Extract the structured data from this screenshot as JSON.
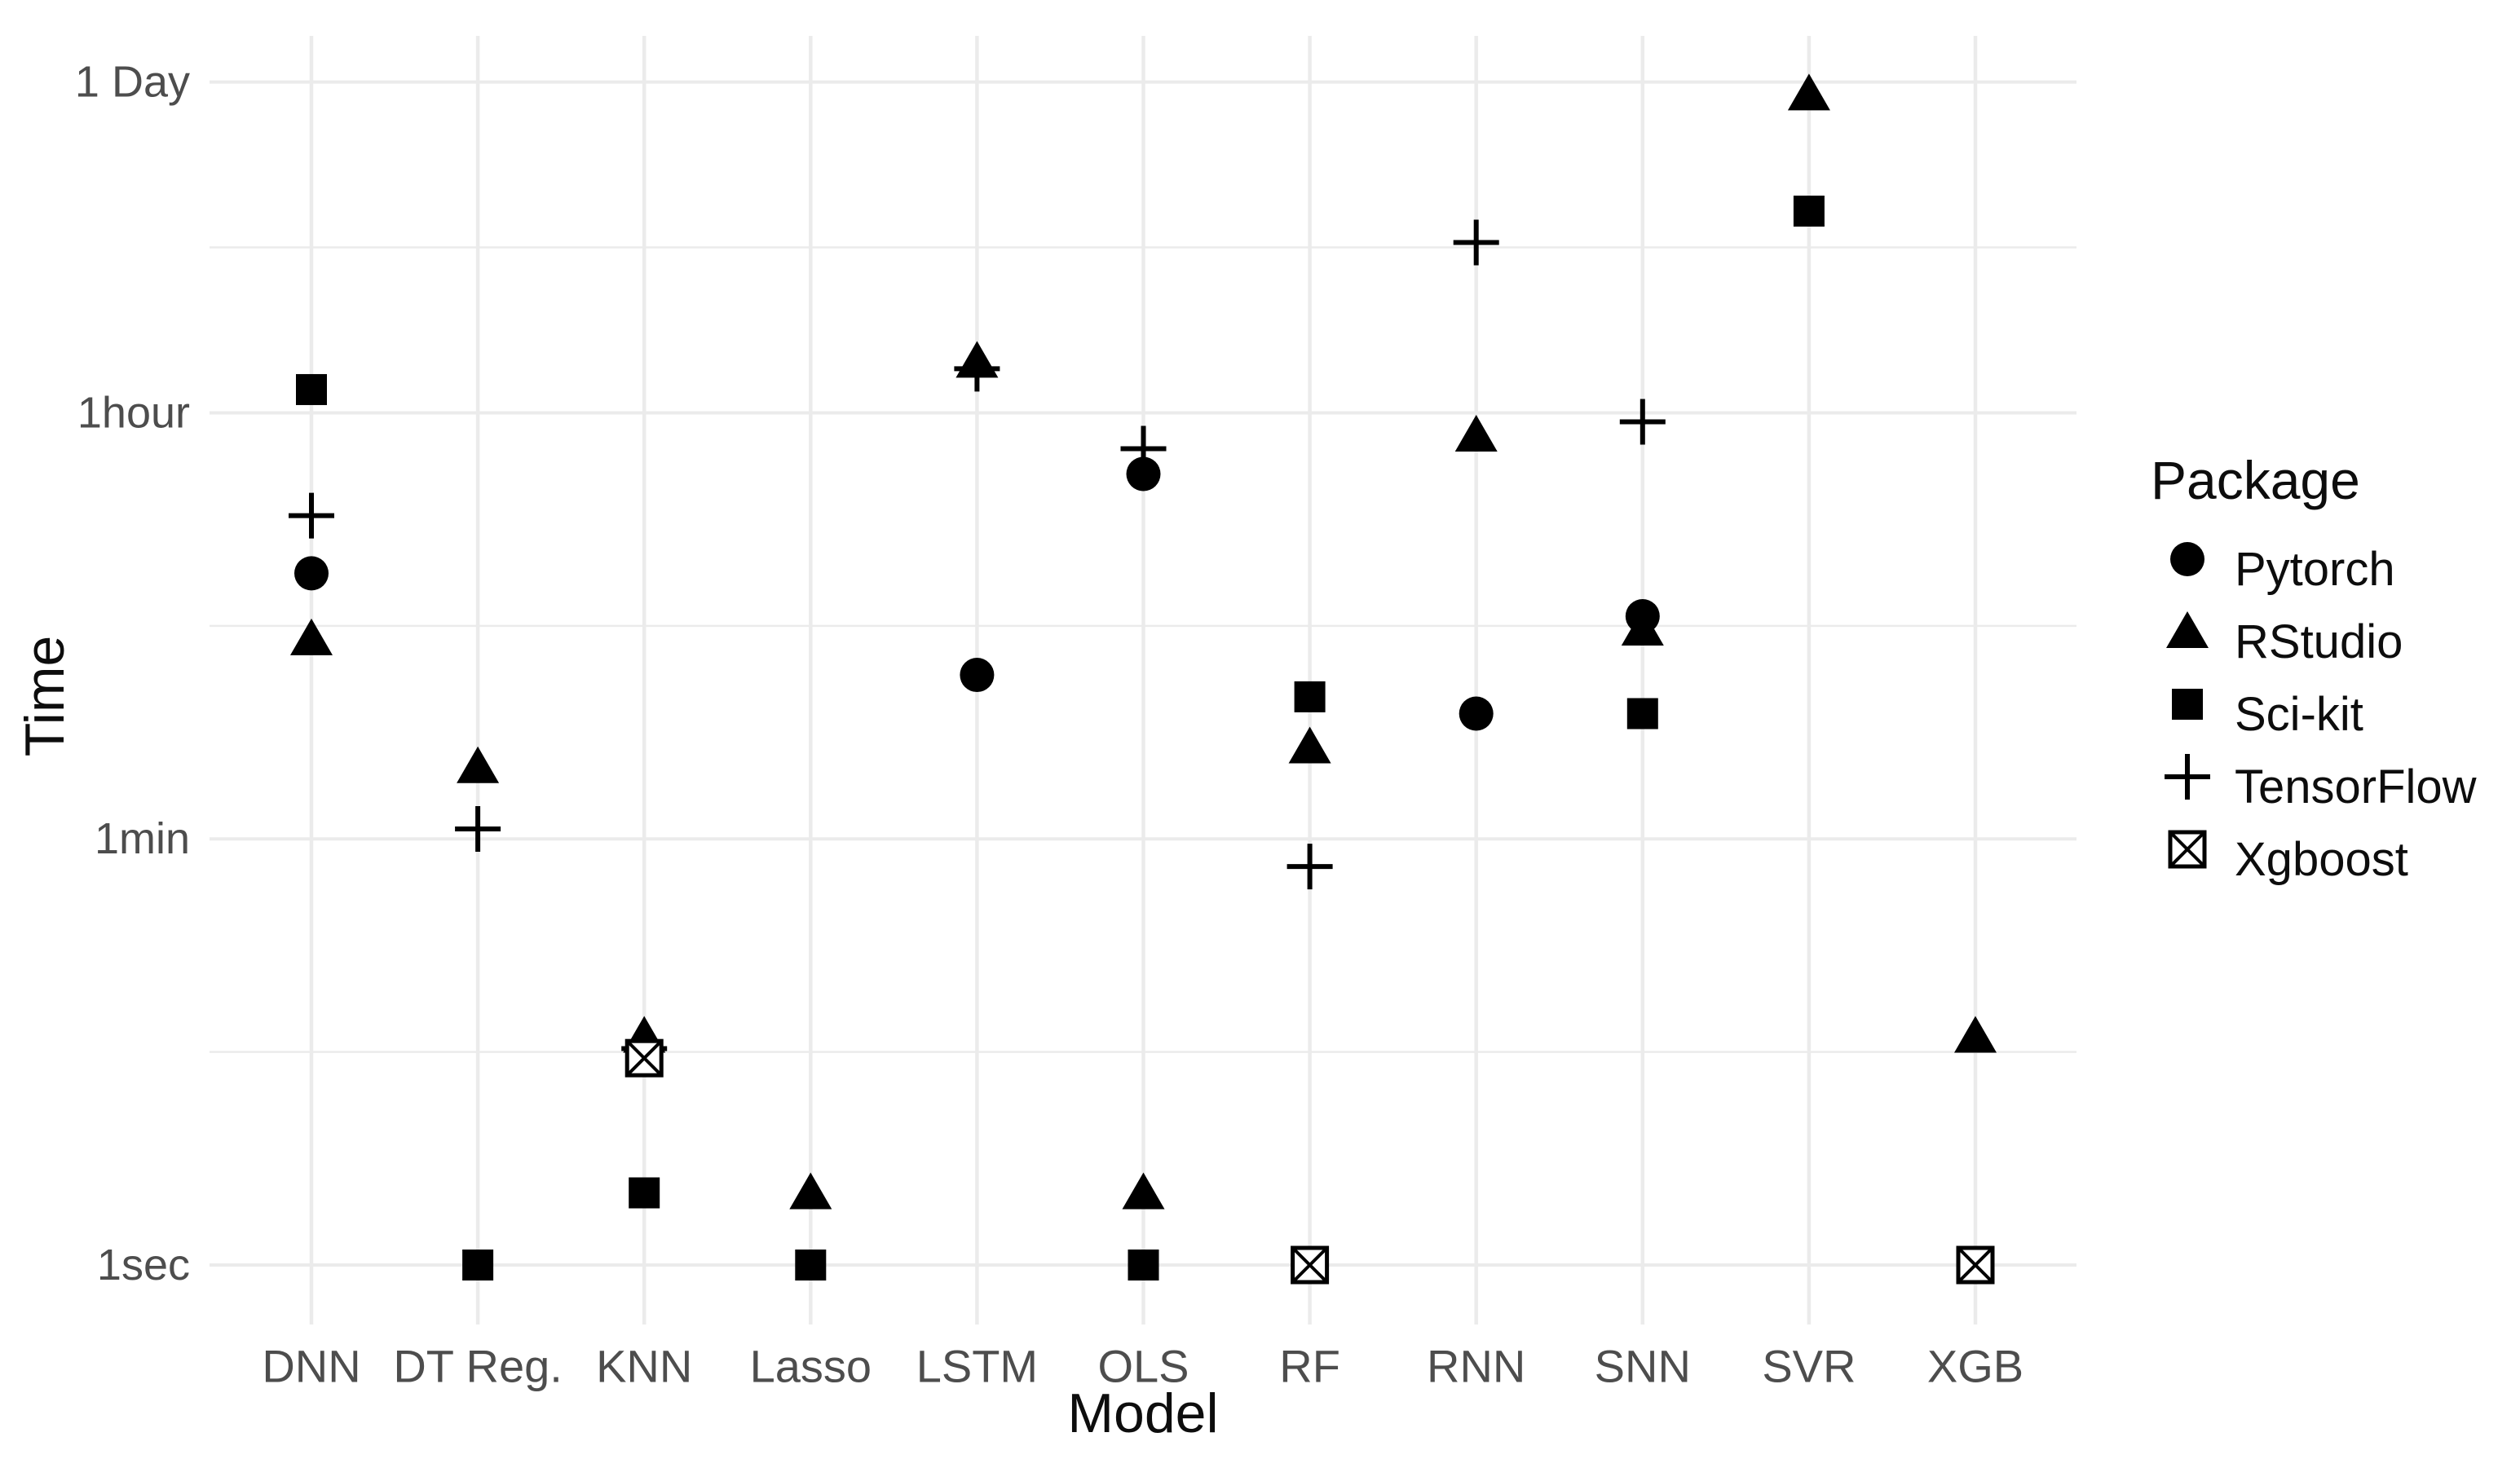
{
  "chart_data": {
    "type": "scatter",
    "title": "",
    "xlabel": "Model",
    "ylabel": "Time",
    "legend_title": "Package",
    "legend_position": "right",
    "grid": true,
    "x_categories": [
      "DNN",
      "DT Reg.",
      "KNN",
      "Lasso",
      "LSTM",
      "OLS",
      "RF",
      "RNN",
      "SNN",
      "SVR",
      "XGB"
    ],
    "y_axis": {
      "scale": "log",
      "unit": "seconds",
      "ticks": [
        {
          "label": "1sec",
          "seconds": 1
        },
        {
          "label": "1min",
          "seconds": 60
        },
        {
          "label": "1hour",
          "seconds": 3600
        },
        {
          "label": "1 Day",
          "seconds": 86400
        }
      ],
      "minor_gridlines": "geometric midpoint between adjacent major ticks",
      "range_seconds": [
        0.57,
        120000
      ]
    },
    "series": [
      {
        "name": "Pytorch",
        "marker": "filled-circle",
        "points": [
          [
            "DNN",
            770
          ],
          [
            "LSTM",
            290
          ],
          [
            "OLS",
            2000
          ],
          [
            "RNN",
            200
          ],
          [
            "SNN",
            510
          ]
        ]
      },
      {
        "name": "RStudio",
        "marker": "filled-triangle",
        "points": [
          [
            "DNN",
            410
          ],
          [
            "DT Reg.",
            120
          ],
          [
            "KNN",
            9
          ],
          [
            "Lasso",
            2
          ],
          [
            "LSTM",
            5900
          ],
          [
            "OLS",
            2
          ],
          [
            "RF",
            145
          ],
          [
            "RNN",
            2900
          ],
          [
            "SNN",
            450
          ],
          [
            "SVR",
            77000
          ],
          [
            "XGB",
            9
          ]
        ]
      },
      {
        "name": "Sci-kit",
        "marker": "filled-square",
        "points": [
          [
            "DNN",
            4500
          ],
          [
            "DT Reg.",
            1
          ],
          [
            "KNN",
            2
          ],
          [
            "Lasso",
            1
          ],
          [
            "OLS",
            1
          ],
          [
            "RF",
            235
          ],
          [
            "SNN",
            200
          ],
          [
            "SVR",
            25000
          ]
        ]
      },
      {
        "name": "TensorFlow",
        "marker": "plus",
        "points": [
          [
            "DNN",
            1340
          ],
          [
            "DT Reg.",
            66
          ],
          [
            "KNN",
            8
          ],
          [
            "LSTM",
            5500
          ],
          [
            "OLS",
            2550
          ],
          [
            "RF",
            46
          ],
          [
            "RNN",
            18500
          ],
          [
            "SNN",
            3300
          ]
        ]
      },
      {
        "name": "Xgboost",
        "marker": "crossed-open-square",
        "points": [
          [
            "KNN",
            7.3
          ],
          [
            "RF",
            1
          ],
          [
            "XGB",
            1
          ]
        ]
      }
    ]
  },
  "colors": {
    "marker": "#000000",
    "gridline_major": "#ebebeb",
    "gridline_minor": "#ebebeb",
    "tick_label": "#4d4d4d",
    "axis_title": "#0d0d0d",
    "background": "#ffffff"
  }
}
